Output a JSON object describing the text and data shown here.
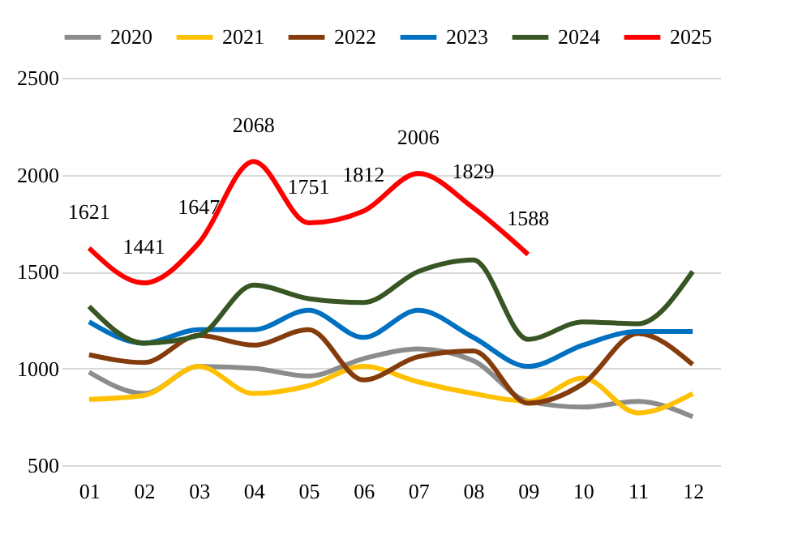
{
  "chart_data": {
    "type": "line",
    "categories": [
      "01",
      "02",
      "03",
      "04",
      "05",
      "06",
      "07",
      "08",
      "09",
      "10",
      "11",
      "12"
    ],
    "series": [
      {
        "name": "2020",
        "color": "#8c8c8c",
        "values": [
          980,
          870,
          1010,
          1000,
          960,
          1050,
          1100,
          1040,
          830,
          800,
          830,
          750
        ]
      },
      {
        "name": "2021",
        "color": "#ffc000",
        "values": [
          840,
          860,
          1010,
          870,
          910,
          1010,
          930,
          870,
          830,
          950,
          770,
          870
        ]
      },
      {
        "name": "2022",
        "color": "#843c0c",
        "values": [
          1070,
          1030,
          1170,
          1120,
          1200,
          940,
          1060,
          1090,
          820,
          920,
          1180,
          1020
        ]
      },
      {
        "name": "2023",
        "color": "#0070c0",
        "values": [
          1240,
          1130,
          1200,
          1200,
          1300,
          1160,
          1300,
          1160,
          1010,
          1120,
          1190,
          1190
        ]
      },
      {
        "name": "2024",
        "color": "#375623",
        "values": [
          1320,
          1130,
          1170,
          1430,
          1360,
          1340,
          1500,
          1560,
          1150,
          1240,
          1230,
          1500
        ]
      },
      {
        "name": "2025",
        "color": "#ff0000",
        "values": [
          1621,
          1441,
          1647,
          2068,
          1751,
          1812,
          2006,
          1829,
          1588,
          null,
          null,
          null
        ],
        "value_labels": [
          "1621",
          "1441",
          "1647",
          "2068",
          "1751",
          "1812",
          "2006",
          "1829",
          "1588",
          null,
          null,
          null
        ]
      }
    ],
    "ylim": [
      500,
      2500
    ],
    "yticks": [
      500,
      1000,
      1500,
      2000,
      2500
    ],
    "grid": "y",
    "legend": "top",
    "marker": "none",
    "line_style": "solid"
  }
}
